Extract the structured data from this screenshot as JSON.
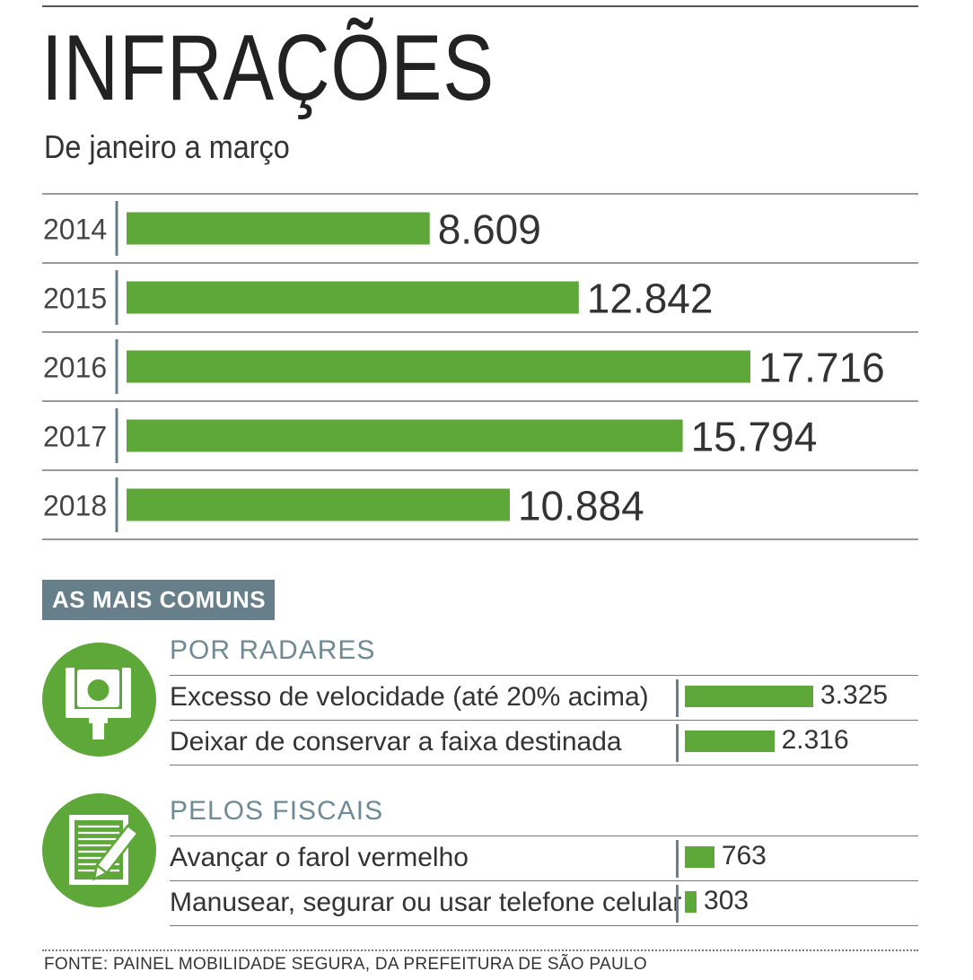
{
  "title": "INFRAÇÕES",
  "subtitle": "De janeiro a março",
  "chart_data": [
    {
      "type": "bar",
      "orientation": "horizontal",
      "categories": [
        "2014",
        "2015",
        "2016",
        "2017",
        "2018"
      ],
      "values": [
        8609,
        12842,
        17716,
        15794,
        10884
      ],
      "value_labels": [
        "8.609",
        "12.842",
        "17.716",
        "15.794",
        "10.884"
      ],
      "bar_color": "#5ea83a"
    },
    {
      "type": "bar",
      "orientation": "horizontal",
      "title": "POR RADARES",
      "categories": [
        "Excesso de velocidade (até 20% acima)",
        "Deixar de conservar a faixa destinada"
      ],
      "values": [
        3325,
        2316
      ],
      "value_labels": [
        "3.325",
        "2.316"
      ],
      "bar_color": "#5ea83a"
    },
    {
      "type": "bar",
      "orientation": "horizontal",
      "title": "PELOS FISCAIS",
      "categories": [
        "Avançar o farol vermelho",
        "Manusear, segurar ou usar telefone celular"
      ],
      "values": [
        763,
        303
      ],
      "value_labels": [
        "763",
        "303"
      ],
      "bar_color": "#5ea83a"
    }
  ],
  "section_badge": "AS MAIS COMUNS",
  "icons": {
    "radar": "speed-camera-icon",
    "fiscal": "notepad-pencil-icon"
  },
  "colors": {
    "bar": "#5ea83a",
    "accent": "#667f8b",
    "section_title": "#6e8a96"
  },
  "source": "FONTE: PAINEL MOBILIDADE SEGURA, DA PREFEITURA DE SÃO PAULO"
}
